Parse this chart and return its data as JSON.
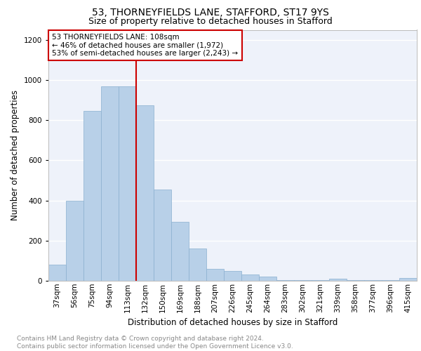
{
  "title1": "53, THORNEYFIELDS LANE, STAFFORD, ST17 9YS",
  "title2": "Size of property relative to detached houses in Stafford",
  "xlabel": "Distribution of detached houses by size in Stafford",
  "ylabel": "Number of detached properties",
  "categories": [
    "37sqm",
    "56sqm",
    "75sqm",
    "94sqm",
    "113sqm",
    "132sqm",
    "150sqm",
    "169sqm",
    "188sqm",
    "207sqm",
    "226sqm",
    "245sqm",
    "264sqm",
    "283sqm",
    "302sqm",
    "321sqm",
    "339sqm",
    "358sqm",
    "377sqm",
    "396sqm",
    "415sqm"
  ],
  "values": [
    80,
    400,
    845,
    968,
    968,
    875,
    455,
    295,
    160,
    60,
    50,
    30,
    20,
    5,
    5,
    5,
    10,
    3,
    3,
    3,
    15
  ],
  "bar_color": "#b8d0e8",
  "bar_edge_color": "#8ab0d0",
  "annotation_text": "53 THORNEYFIELDS LANE: 108sqm\n← 46% of detached houses are smaller (1,972)\n53% of semi-detached houses are larger (2,243) →",
  "annotation_box_color": "#ffffff",
  "annotation_box_edge": "#cc0000",
  "redline_color": "#cc0000",
  "redline_index": 4,
  "ylim": [
    0,
    1250
  ],
  "yticks": [
    0,
    200,
    400,
    600,
    800,
    1000,
    1200
  ],
  "background_color": "#eef2fa",
  "grid_color": "#ffffff",
  "footer_text": "Contains HM Land Registry data © Crown copyright and database right 2024.\nContains public sector information licensed under the Open Government Licence v3.0.",
  "title1_fontsize": 10,
  "title2_fontsize": 9,
  "xlabel_fontsize": 8.5,
  "ylabel_fontsize": 8.5,
  "tick_fontsize": 7.5,
  "annotation_fontsize": 7.5,
  "footer_fontsize": 6.5
}
